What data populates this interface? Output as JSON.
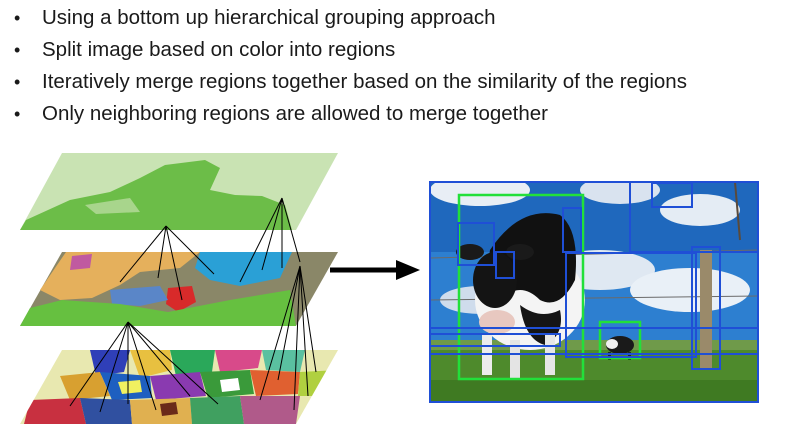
{
  "bullets": [
    "Using a bottom up hierarchical grouping approach",
    "Split image based on color into regions",
    "Iteratively merge regions together based on the similarity of the regions",
    "Only neighboring regions are allowed to merge together"
  ],
  "colors": {
    "box_blue": "#1f4fd6",
    "box_green": "#22e03a",
    "arrow": "#000000",
    "sky": "#2d7fd0",
    "grass": "#4e8a2c"
  }
}
